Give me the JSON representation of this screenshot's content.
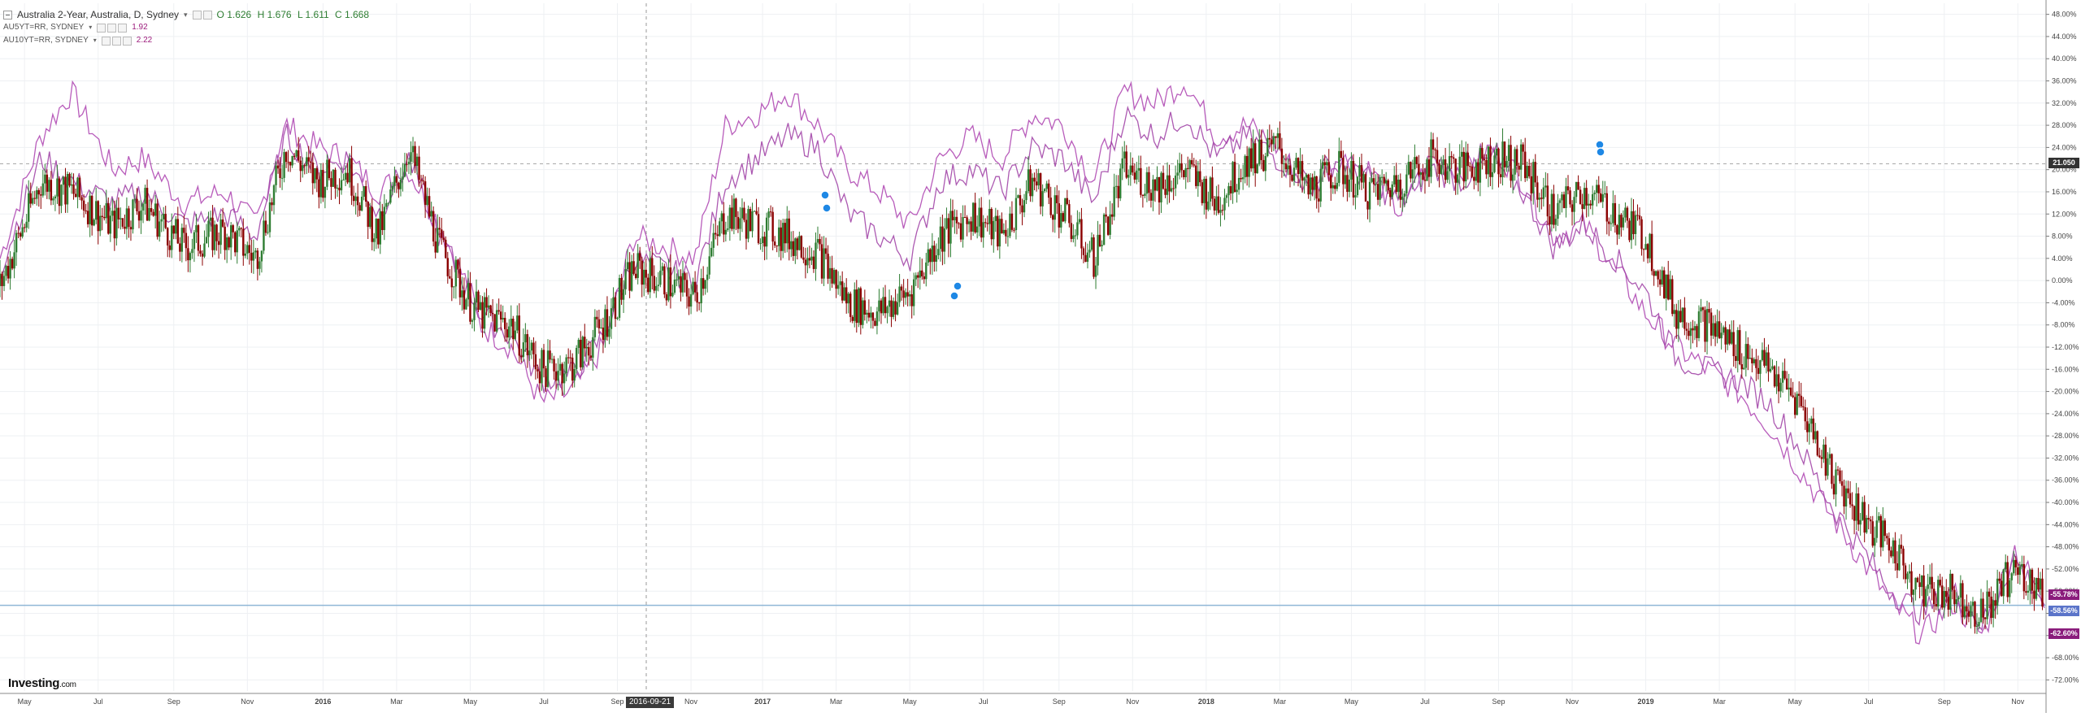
{
  "legend": {
    "main": {
      "title": "Australia 2-Year, Australia, D, Sydney",
      "open": "O 1.626",
      "high": "H 1.676",
      "low": "L 1.611",
      "close": "C 1.668"
    },
    "series": [
      {
        "label": "AU5YT=RR, SYDNEY",
        "value": "1.92"
      },
      {
        "label": "AU10YT=RR, SYDNEY",
        "value": "2.22"
      }
    ]
  },
  "branding": {
    "logo": "Investing",
    "logo_suffix": ".com"
  },
  "crosshair_date": "2016-09-21",
  "price_tags": {
    "main": "21.050",
    "au10y": "-55.78%",
    "au2y": "-58.56%",
    "au5y": "-62.60%"
  },
  "colors": {
    "up": "#2e7d32",
    "down": "#8b0000",
    "series_a": "#b04ab4",
    "series_b": "#a347a8",
    "hline": "#8fb6d6",
    "grid": "#eef0f3",
    "badge_purple": "#8a1c7c",
    "badge_blue": "#5b74c9",
    "badge_dark": "#333333"
  },
  "chart_data": {
    "type": "line",
    "y_unit": "%",
    "ylim": [
      -74,
      50
    ],
    "y_ticks": [
      "48.00%",
      "44.00%",
      "40.00%",
      "36.00%",
      "32.00%",
      "28.00%",
      "24.00%",
      "20.00%",
      "16.00%",
      "12.00%",
      "8.00%",
      "4.00%",
      "0.00%",
      "-4.00%",
      "-8.00%",
      "-12.00%",
      "-16.00%",
      "-20.00%",
      "-24.00%",
      "-28.00%",
      "-32.00%",
      "-36.00%",
      "-40.00%",
      "-44.00%",
      "-48.00%",
      "-52.00%",
      "-56.00%",
      "-60.00%",
      "-64.00%",
      "-68.00%",
      "-72.00%"
    ],
    "x_ticks": [
      "May",
      "Jul",
      "Sep",
      "Nov",
      "2016",
      "Mar",
      "May",
      "Jul",
      "Sep",
      "Nov",
      "2017",
      "Mar",
      "May",
      "Jul",
      "Sep",
      "Nov",
      "2018",
      "Mar",
      "May",
      "Jul",
      "Sep",
      "Nov",
      "2019",
      "Mar",
      "May",
      "Jul",
      "Sep",
      "Nov"
    ],
    "x_tick_fractions": [
      0.012,
      0.048,
      0.085,
      0.121,
      0.158,
      0.194,
      0.23,
      0.266,
      0.302,
      0.338,
      0.373,
      0.409,
      0.445,
      0.481,
      0.518,
      0.554,
      0.59,
      0.626,
      0.661,
      0.697,
      0.733,
      0.769,
      0.805,
      0.841,
      0.878,
      0.914,
      0.951,
      0.987
    ],
    "series": [
      {
        "name": "Australia 2-Year",
        "kind": "candles",
        "t": [
          0,
          0.02,
          0.035,
          0.055,
          0.07,
          0.09,
          0.11,
          0.125,
          0.14,
          0.155,
          0.17,
          0.185,
          0.2,
          0.215,
          0.23,
          0.235,
          0.25,
          0.265,
          0.28,
          0.295,
          0.31,
          0.325,
          0.34,
          0.355,
          0.37,
          0.385,
          0.4,
          0.415,
          0.43,
          0.445,
          0.46,
          0.475,
          0.49,
          0.505,
          0.52,
          0.535,
          0.55,
          0.565,
          0.58,
          0.595,
          0.61,
          0.625,
          0.64,
          0.655,
          0.67,
          0.685,
          0.7,
          0.715,
          0.73,
          0.745,
          0.76,
          0.775,
          0.79,
          0.805,
          0.82,
          0.835,
          0.85,
          0.865,
          0.88,
          0.895,
          0.91,
          0.925,
          0.94,
          0.955,
          0.97,
          0.985,
          1.0
        ],
        "y": [
          -1,
          18,
          16,
          10,
          14,
          6,
          9,
          4,
          24,
          18,
          20,
          8,
          24,
          6,
          -4,
          -6,
          -8,
          -16,
          -15,
          -8,
          2,
          0,
          -3,
          12,
          10,
          8,
          5,
          -4,
          -6,
          -2,
          8,
          12,
          8,
          18,
          12,
          4,
          20,
          17,
          20,
          14,
          22,
          24,
          16,
          20,
          16,
          18,
          22,
          20,
          22,
          21,
          12,
          16,
          12,
          8,
          -6,
          -8,
          -12,
          -16,
          -22,
          -34,
          -42,
          -48,
          -56,
          -56,
          -60,
          -52,
          -56
        ]
      },
      {
        "name": "AU5YT=RR",
        "kind": "line",
        "t": [
          0,
          0.02,
          0.035,
          0.055,
          0.07,
          0.09,
          0.11,
          0.125,
          0.14,
          0.155,
          0.17,
          0.185,
          0.2,
          0.215,
          0.23,
          0.235,
          0.25,
          0.265,
          0.28,
          0.295,
          0.31,
          0.325,
          0.34,
          0.355,
          0.37,
          0.385,
          0.4,
          0.415,
          0.43,
          0.445,
          0.46,
          0.475,
          0.49,
          0.505,
          0.52,
          0.535,
          0.55,
          0.565,
          0.58,
          0.595,
          0.61,
          0.625,
          0.64,
          0.655,
          0.67,
          0.685,
          0.7,
          0.715,
          0.73,
          0.745,
          0.76,
          0.775,
          0.79,
          0.805,
          0.82,
          0.835,
          0.85,
          0.865,
          0.88,
          0.895,
          0.91,
          0.925,
          0.94,
          0.955,
          0.97,
          0.985,
          1.0
        ],
        "y": [
          2,
          22,
          18,
          14,
          16,
          10,
          12,
          8,
          26,
          20,
          22,
          12,
          22,
          8,
          -2,
          -6,
          -10,
          -18,
          -17,
          -10,
          4,
          2,
          0,
          18,
          22,
          26,
          24,
          12,
          8,
          4,
          18,
          20,
          16,
          24,
          22,
          14,
          30,
          26,
          30,
          22,
          26,
          22,
          18,
          22,
          18,
          14,
          20,
          18,
          22,
          16,
          6,
          10,
          4,
          -2,
          -14,
          -16,
          -18,
          -22,
          -30,
          -40,
          -48,
          -56,
          -60,
          -56,
          -62,
          -50,
          -58
        ]
      },
      {
        "name": "AU10YT=RR",
        "kind": "line",
        "t": [
          0,
          0.02,
          0.035,
          0.055,
          0.07,
          0.09,
          0.11,
          0.125,
          0.14,
          0.155,
          0.17,
          0.185,
          0.2,
          0.215,
          0.23,
          0.235,
          0.25,
          0.265,
          0.28,
          0.295,
          0.31,
          0.325,
          0.34,
          0.355,
          0.37,
          0.385,
          0.4,
          0.415,
          0.43,
          0.445,
          0.46,
          0.475,
          0.49,
          0.505,
          0.52,
          0.535,
          0.55,
          0.565,
          0.58,
          0.595,
          0.61,
          0.625,
          0.64,
          0.655,
          0.67,
          0.685,
          0.7,
          0.715,
          0.73,
          0.745,
          0.76,
          0.775,
          0.79,
          0.805,
          0.82,
          0.835,
          0.85,
          0.865,
          0.88,
          0.895,
          0.91,
          0.925,
          0.94,
          0.955,
          0.97,
          0.985,
          1.0
        ],
        "y": [
          4,
          26,
          34,
          20,
          22,
          14,
          16,
          10,
          28,
          24,
          22,
          16,
          20,
          10,
          -2,
          -8,
          -12,
          -22,
          -20,
          -12,
          8,
          6,
          4,
          28,
          30,
          34,
          28,
          20,
          16,
          10,
          22,
          26,
          22,
          30,
          28,
          18,
          34,
          32,
          36,
          26,
          28,
          24,
          16,
          22,
          20,
          12,
          22,
          20,
          24,
          18,
          8,
          10,
          2,
          -6,
          -12,
          -16,
          -20,
          -26,
          -34,
          -42,
          -50,
          -58,
          -64,
          -58,
          -64,
          -48,
          -58
        ]
      }
    ]
  }
}
